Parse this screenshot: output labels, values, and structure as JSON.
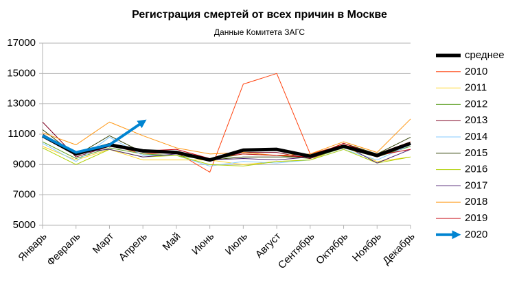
{
  "chart_data": {
    "type": "line",
    "title": "Регистрация смертей от всех причин в Москве",
    "subtitle": "Данные Комитета ЗАГС",
    "categories": [
      "Январь",
      "Февраль",
      "Март",
      "Апрель",
      "Май",
      "Июнь",
      "Июль",
      "Август",
      "Сентябрь",
      "Октябрь",
      "Ноябрь",
      "Декабрь"
    ],
    "ylim": [
      5000,
      17000
    ],
    "yticks": [
      5000,
      7000,
      9000,
      11000,
      13000,
      15000,
      17000
    ],
    "grid": true,
    "legend": "right",
    "series": [
      {
        "name": "среднее",
        "color": "#000000",
        "values": [
          10900,
          9700,
          10300,
          9900,
          9800,
          9300,
          9950,
          10000,
          9550,
          10200,
          9600,
          10400
        ]
      },
      {
        "name": "2010",
        "color": "#ff420e",
        "values": [
          10900,
          9700,
          10300,
          9700,
          9800,
          8500,
          14300,
          15000,
          9700,
          10300,
          9700,
          10500
        ]
      },
      {
        "name": "2011",
        "color": "#ffd320",
        "values": [
          10200,
          9300,
          10000,
          9300,
          9300,
          9300,
          9000,
          9200,
          9300,
          10200,
          9200,
          9500
        ]
      },
      {
        "name": "2012",
        "color": "#579d1c",
        "values": [
          10500,
          9400,
          10100,
          9700,
          9600,
          9300,
          9700,
          9600,
          9400,
          10100,
          9500,
          10200
        ]
      },
      {
        "name": "2013",
        "color": "#7e0021",
        "values": [
          11800,
          9500,
          10200,
          9900,
          9700,
          9300,
          9800,
          9800,
          9400,
          10200,
          9500,
          10300
        ]
      },
      {
        "name": "2014",
        "color": "#83caff",
        "values": [
          10400,
          9200,
          10800,
          9600,
          9600,
          8900,
          9200,
          9100,
          9300,
          10000,
          9300,
          10300
        ]
      },
      {
        "name": "2015",
        "color": "#314004",
        "values": [
          11300,
          9600,
          10900,
          9800,
          9800,
          9300,
          9500,
          9500,
          9500,
          10400,
          9700,
          10800
        ]
      },
      {
        "name": "2016",
        "color": "#aecf00",
        "values": [
          10100,
          9000,
          10000,
          9500,
          9600,
          9000,
          8900,
          9200,
          9300,
          10000,
          9100,
          9500
        ]
      },
      {
        "name": "2017",
        "color": "#4b1f6f",
        "values": [
          10800,
          9800,
          10000,
          9500,
          9700,
          9300,
          9400,
          9300,
          9500,
          10300,
          9100,
          10000
        ]
      },
      {
        "name": "2018",
        "color": "#ff950e",
        "values": [
          11100,
          10300,
          11800,
          10900,
          10100,
          9700,
          9800,
          9600,
          9700,
          10500,
          9800,
          12000
        ]
      },
      {
        "name": "2019",
        "color": "#c5000b",
        "values": [
          10900,
          9700,
          10200,
          9900,
          10000,
          9400,
          9700,
          9600,
          9500,
          10400,
          9600,
          10000
        ]
      },
      {
        "name": "2020",
        "color": "#0084d1",
        "values": [
          10900,
          9800,
          10300,
          11800,
          null,
          null,
          null,
          null,
          null,
          null,
          null,
          null
        ]
      }
    ]
  }
}
